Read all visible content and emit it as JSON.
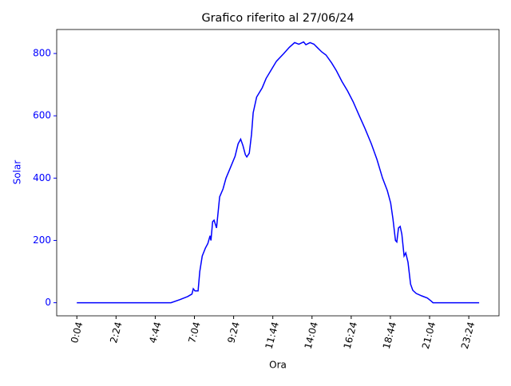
{
  "chart_data": {
    "type": "line",
    "title": "Grafico riferito al 27/06/24",
    "xlabel": "Ora",
    "ylabel": "Solar",
    "x": [
      4,
      340,
      372,
      400,
      415,
      420,
      426,
      437,
      443,
      452,
      463,
      472,
      480,
      483,
      489,
      494,
      503,
      514,
      526,
      537,
      551,
      569,
      580,
      589,
      597,
      606,
      611,
      620,
      628,
      634,
      646,
      666,
      680,
      700,
      717,
      743,
      763,
      782,
      797,
      814,
      822,
      837,
      851,
      862,
      879,
      894,
      914,
      931,
      951,
      971,
      991,
      1013,
      1033,
      1056,
      1076,
      1096,
      1113,
      1125,
      1133,
      1142,
      1147,
      1153,
      1159,
      1165,
      1173,
      1179,
      1187,
      1196,
      1204,
      1216,
      1236,
      1256,
      1270,
      1276,
      1441
    ],
    "series": [
      {
        "name": "Solar",
        "color": "#0000ff",
        "values": [
          0,
          0,
          10,
          20,
          28,
          45,
          38,
          38,
          100,
          150,
          175,
          190,
          215,
          200,
          260,
          265,
          240,
          340,
          365,
          400,
          430,
          470,
          510,
          525,
          505,
          475,
          468,
          480,
          540,
          610,
          660,
          690,
          720,
          750,
          775,
          800,
          820,
          835,
          830,
          837,
          828,
          835,
          830,
          820,
          805,
          795,
          770,
          745,
          710,
          680,
          645,
          600,
          560,
          510,
          460,
          400,
          360,
          320,
          270,
          200,
          195,
          240,
          245,
          220,
          150,
          160,
          130,
          60,
          40,
          30,
          22,
          15,
          5,
          0,
          0
        ]
      }
    ],
    "xlim": [
      -68,
      1512
    ],
    "ylim": [
      -42,
      877
    ],
    "xticks": [
      {
        "value": 4,
        "label": "0:04"
      },
      {
        "value": 144,
        "label": "2:24"
      },
      {
        "value": 284,
        "label": "4:44"
      },
      {
        "value": 424,
        "label": "7:04"
      },
      {
        "value": 564,
        "label": "9:24"
      },
      {
        "value": 704,
        "label": "11:44"
      },
      {
        "value": 844,
        "label": "14:04"
      },
      {
        "value": 984,
        "label": "16:24"
      },
      {
        "value": 1124,
        "label": "18:44"
      },
      {
        "value": 1264,
        "label": "21:04"
      },
      {
        "value": 1404,
        "label": "23:24"
      }
    ],
    "yticks": [
      0,
      200,
      400,
      600,
      800
    ],
    "ytick_color": "#0000ff"
  }
}
